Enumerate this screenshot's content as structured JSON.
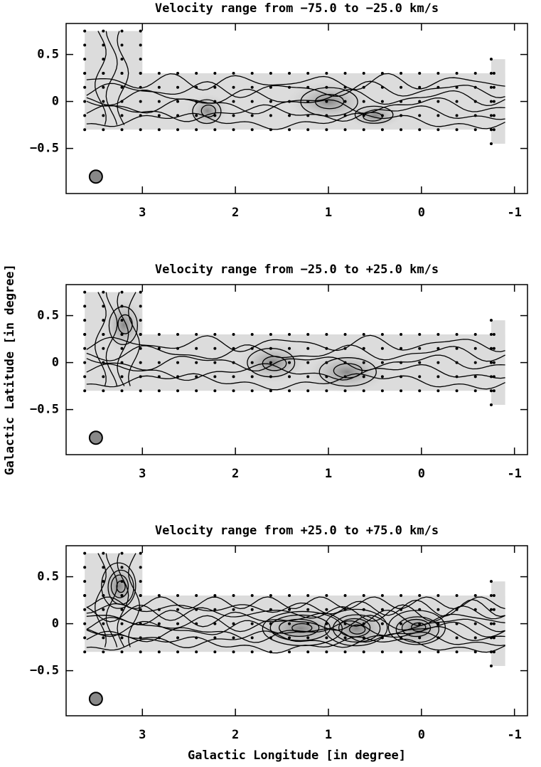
{
  "chart_data": [
    {
      "type": "contour",
      "title": "Velocity range from −75.0 to −25.0 km/s",
      "xlim": [
        3.82,
        -1.14
      ],
      "ylim": [
        -0.98,
        0.83
      ],
      "xticks": [
        3,
        2,
        1,
        0,
        -1
      ],
      "yticks": [
        {
          "value": 0.5,
          "label": "0.5"
        },
        0,
        {
          "value": -0.5,
          "label": "−0.5"
        }
      ]
    },
    {
      "type": "contour",
      "title": "Velocity range from −25.0 to +25.0 km/s",
      "ylabel": "Galactic Latitude [in degree]",
      "xlim": [
        3.82,
        -1.14
      ],
      "ylim": [
        -0.98,
        0.83
      ],
      "xticks": [
        3,
        2,
        1,
        0,
        -1
      ],
      "yticks": [
        {
          "value": 0.5,
          "label": "0.5"
        },
        0,
        {
          "value": -0.5,
          "label": "−0.5"
        }
      ]
    },
    {
      "type": "contour",
      "title": "Velocity range from +25.0 to +75.0 km/s",
      "xlabel": "Galactic Longitude [in degree]",
      "xlim": [
        3.82,
        -1.14
      ],
      "ylim": [
        -0.98,
        0.83
      ],
      "xticks": [
        3,
        2,
        1,
        0,
        -1
      ],
      "yticks": [
        {
          "value": 0.5,
          "label": "0.5"
        },
        0,
        {
          "value": -0.5,
          "label": "−0.5"
        }
      ]
    }
  ]
}
